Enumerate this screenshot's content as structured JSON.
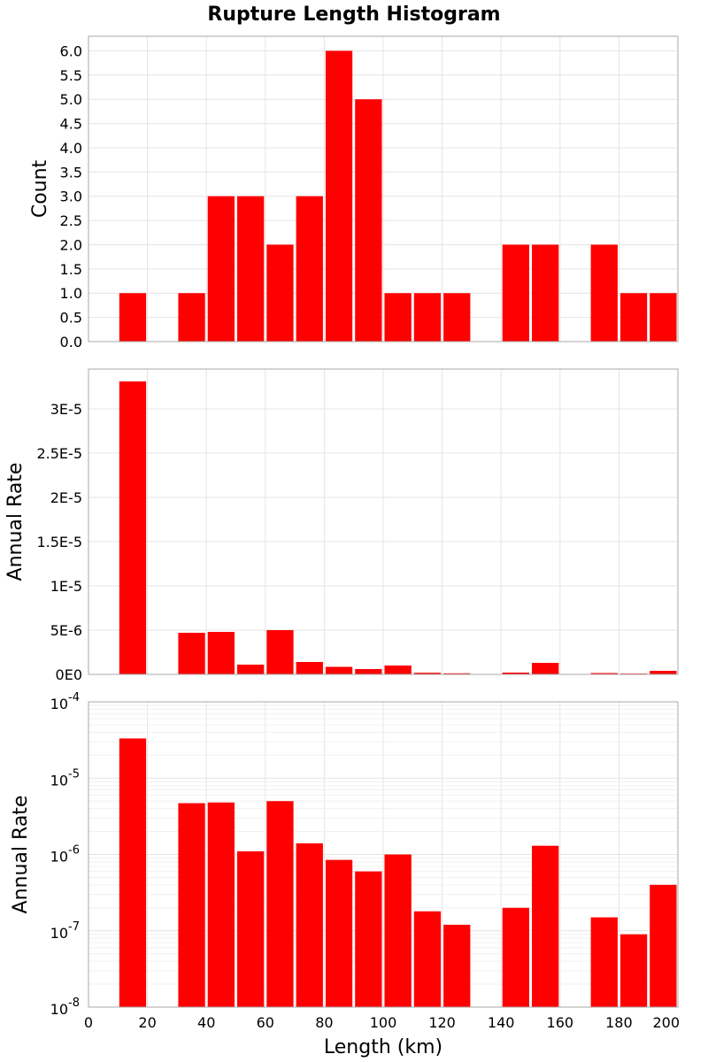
{
  "title": "Rupture Length Histogram",
  "colors": {
    "bar": "#ff0000",
    "grid": "#e4e4e4",
    "frame": "#aaaaaa"
  },
  "x_axis": {
    "label": "Length (km)",
    "min": 0,
    "max": 200,
    "ticks": [
      "0",
      "20",
      "40",
      "60",
      "80",
      "100",
      "120",
      "140",
      "160",
      "180",
      "200"
    ]
  },
  "chart_data": [
    {
      "type": "bar",
      "ylabel": "Count",
      "scale": "linear",
      "ylim": [
        0,
        6.3
      ],
      "bin_width": 10,
      "bin_centers": [
        15,
        35,
        45,
        55,
        65,
        75,
        85,
        95,
        105,
        115,
        125,
        145,
        155,
        175,
        185,
        195
      ],
      "values": [
        1,
        1,
        3,
        3,
        2,
        3,
        6,
        5,
        1,
        1,
        1,
        2,
        2,
        2,
        1,
        1
      ],
      "yticks": [
        0,
        0.5,
        1,
        1.5,
        2,
        2.5,
        3,
        3.5,
        4,
        4.5,
        5,
        5.5,
        6
      ],
      "ytick_labels": [
        "0.0",
        "0.5",
        "1.0",
        "1.5",
        "2.0",
        "2.5",
        "3.0",
        "3.5",
        "4.0",
        "4.5",
        "5.0",
        "5.5",
        "6.0"
      ]
    },
    {
      "type": "bar",
      "ylabel": "Annual Rate",
      "scale": "linear",
      "ylim": [
        0,
        3.45e-05
      ],
      "bin_width": 10,
      "bin_centers": [
        15,
        35,
        45,
        55,
        65,
        75,
        85,
        95,
        105,
        115,
        125,
        145,
        155,
        175,
        185,
        195
      ],
      "values": [
        3.31e-05,
        4.7e-06,
        4.8e-06,
        1.1e-06,
        5e-06,
        1.4e-06,
        8.5e-07,
        6e-07,
        1e-06,
        1.8e-07,
        1.2e-07,
        2e-07,
        1.3e-06,
        1.5e-07,
        9e-08,
        4e-07
      ],
      "yticks": [
        0,
        5e-06,
        1e-05,
        1.5e-05,
        2e-05,
        2.5e-05,
        3e-05
      ],
      "ytick_labels": [
        "0E0",
        "5E-6",
        "1E-5",
        "1.5E-5",
        "2E-5",
        "2.5E-5",
        "3E-5"
      ]
    },
    {
      "type": "bar",
      "ylabel": "Annual Rate",
      "scale": "log",
      "ylim": [
        1e-08,
        0.0001
      ],
      "bin_width": 10,
      "bin_centers": [
        15,
        35,
        45,
        55,
        65,
        75,
        85,
        95,
        105,
        115,
        125,
        145,
        155,
        175,
        185,
        195
      ],
      "values": [
        3.31e-05,
        4.7e-06,
        4.8e-06,
        1.1e-06,
        5e-06,
        1.4e-06,
        8.5e-07,
        6e-07,
        1e-06,
        1.8e-07,
        1.2e-07,
        2e-07,
        1.3e-06,
        1.5e-07,
        9e-08,
        4e-07
      ],
      "ytick_exponents": [
        -8,
        -7,
        -6,
        -5,
        -4
      ],
      "ytick_base": "10",
      "ytick_sup_labels": [
        "-8",
        "-7",
        "-6",
        "-5",
        "-4"
      ]
    }
  ]
}
